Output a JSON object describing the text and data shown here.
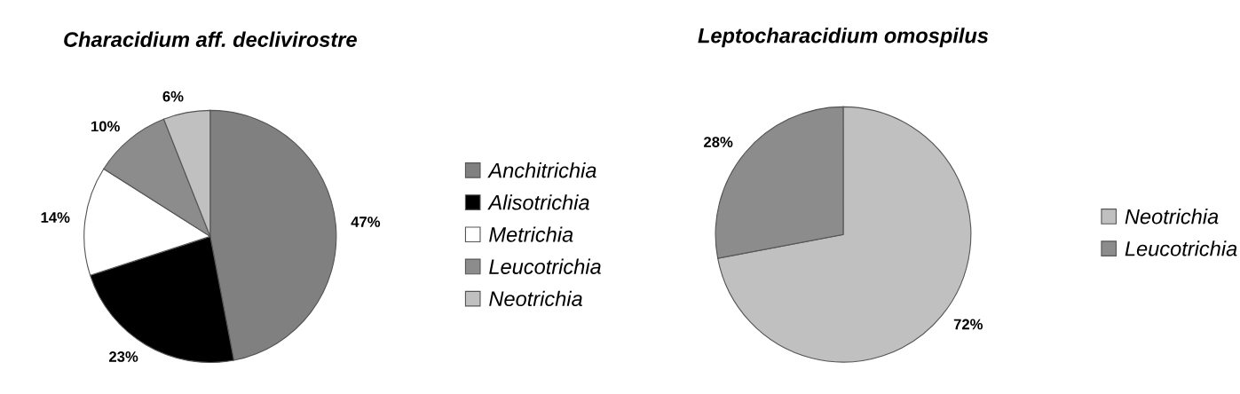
{
  "chart_data": [
    {
      "type": "pie",
      "title": "Characidium aff. declivirostre",
      "categories": [
        "Anchitrichia",
        "Alisotrichia",
        "Metrichia",
        "Leucotrichia",
        "Neotrichia"
      ],
      "values": [
        47,
        23,
        14,
        10,
        6
      ],
      "colors": [
        "#808080",
        "#000000",
        "#ffffff",
        "#8c8c8c",
        "#c0c0c0"
      ],
      "value_labels": [
        "47%",
        "23%",
        "14%",
        "10%",
        "6%"
      ],
      "legend": "right"
    },
    {
      "type": "pie",
      "title": "Leptocharacidium omospilus",
      "categories": [
        "Neotrichia",
        "Leucotrichia"
      ],
      "values": [
        72,
        28
      ],
      "colors": [
        "#c0c0c0",
        "#8c8c8c"
      ],
      "value_labels": [
        "72%",
        "28%"
      ],
      "legend": "right"
    }
  ]
}
